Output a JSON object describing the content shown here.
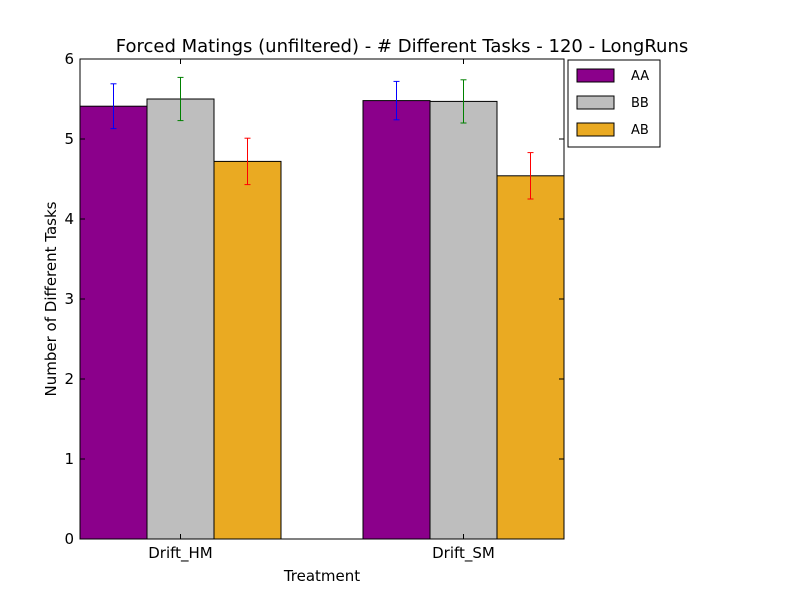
{
  "chart_data": {
    "type": "bar",
    "title": "Forced Matings (unfiltered) - # Different Tasks - 120 - LongRuns",
    "xlabel": "Treatment",
    "ylabel": "Number of Different Tasks",
    "categories": [
      "Drift_HM",
      "Drift_SM"
    ],
    "ylim": [
      0,
      6
    ],
    "yticks": [
      0,
      1,
      2,
      3,
      4,
      5,
      6
    ],
    "grid": false,
    "legend_position": "outside-top-right",
    "series": [
      {
        "name": "AA",
        "color": "#8b008b",
        "error_color": "#0000ff",
        "values": [
          5.41,
          5.48
        ],
        "errors": [
          0.28,
          0.24
        ]
      },
      {
        "name": "BB",
        "color": "#bebebe",
        "error_color": "#008000",
        "values": [
          5.5,
          5.47
        ],
        "errors": [
          0.27,
          0.27
        ]
      },
      {
        "name": "AB",
        "color": "#eaaa22",
        "error_color": "#ff0000",
        "values": [
          4.72,
          4.54
        ],
        "errors": [
          0.29,
          0.29
        ]
      }
    ]
  }
}
